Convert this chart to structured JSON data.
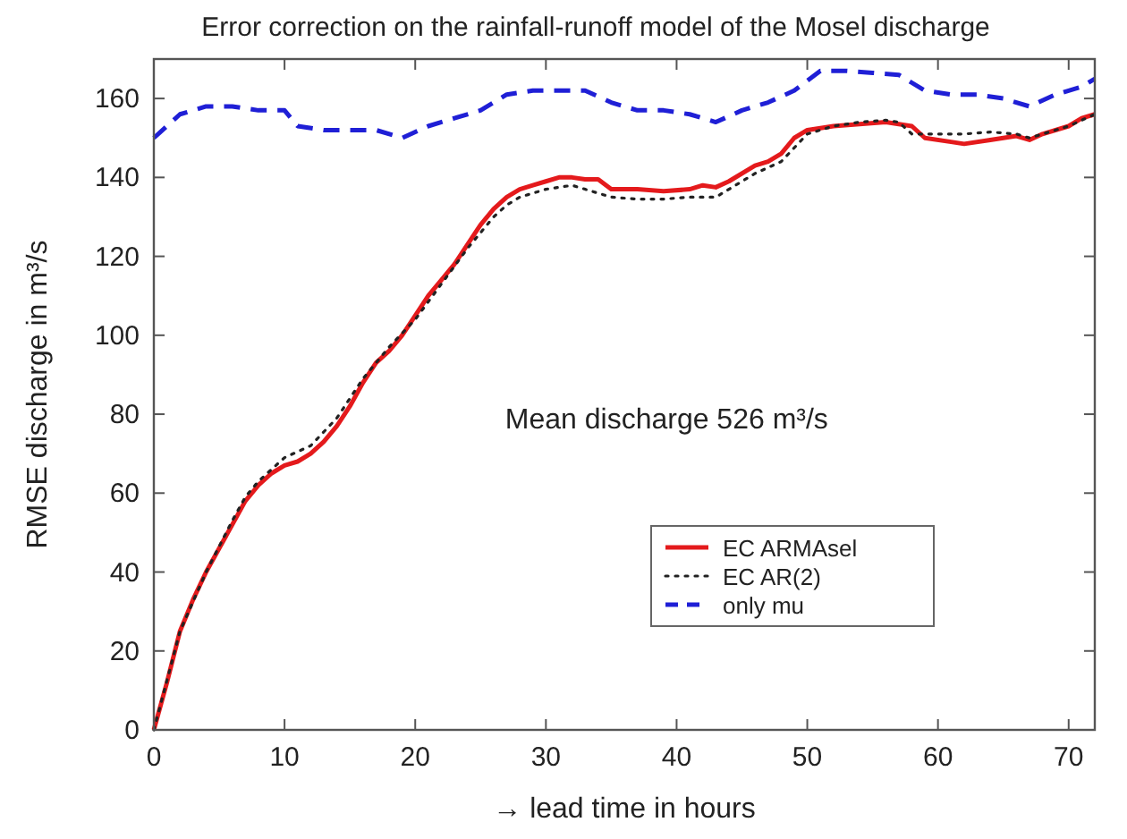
{
  "chart_data": {
    "type": "line",
    "title": "Error correction on the rainfall-runoff model of the Mosel discharge",
    "xlabel": "→ lead time in hours",
    "ylabel": "RMSE discharge in m³/s",
    "annotations": [
      "Mean discharge 526 m³/s"
    ],
    "xlim": [
      0,
      72
    ],
    "ylim": [
      0,
      170
    ],
    "xticks": [
      0,
      10,
      20,
      30,
      40,
      50,
      60,
      70
    ],
    "yticks": [
      0,
      20,
      40,
      60,
      80,
      100,
      120,
      140,
      160
    ],
    "grid": false,
    "legend": "bottom right",
    "marker": "none",
    "series": [
      {
        "name": "EC ARMAsel",
        "color": "#e41a1c",
        "line_style": "solid",
        "x": [
          0,
          1,
          2,
          3,
          4,
          5,
          6,
          7,
          8,
          9,
          10,
          11,
          12,
          13,
          14,
          15,
          16,
          17,
          18,
          19,
          20,
          21,
          22,
          23,
          24,
          25,
          26,
          27,
          28,
          29,
          30,
          31,
          32,
          33,
          34,
          35,
          37,
          39,
          41,
          42,
          43,
          44,
          46,
          47,
          48,
          49,
          50,
          52,
          54,
          56,
          57,
          58,
          59,
          61,
          62,
          64,
          66,
          67,
          68,
          70,
          71,
          72
        ],
        "values": [
          0,
          12,
          25,
          33,
          40,
          46,
          52,
          58,
          62,
          65,
          67,
          68,
          70,
          73,
          77,
          82,
          88,
          93,
          96,
          100,
          105,
          110,
          114,
          118,
          123,
          128,
          132,
          135,
          137,
          138,
          139,
          140,
          140,
          139.5,
          139.5,
          137,
          137,
          136.5,
          137,
          138,
          137.5,
          139,
          143,
          144,
          146,
          150,
          152,
          153,
          153.5,
          154,
          153.5,
          153,
          150,
          149,
          148.5,
          149.5,
          150.5,
          149.5,
          151,
          153,
          155,
          156
        ]
      },
      {
        "name": "EC AR(2)",
        "color": "#222222",
        "line_style": "dotted",
        "x": [
          0,
          2,
          4,
          6,
          7,
          8,
          10,
          12,
          14,
          15,
          16,
          18,
          20,
          22,
          24,
          26,
          27,
          28,
          30,
          32,
          33,
          35,
          37,
          39,
          41,
          43,
          44,
          46,
          48,
          50,
          52,
          54,
          56,
          57,
          58,
          60,
          62,
          64,
          66,
          67,
          68,
          70,
          72
        ],
        "values": [
          0,
          25,
          40,
          53,
          59,
          63,
          69,
          72,
          79,
          84,
          89,
          97,
          104,
          113,
          122,
          130,
          133,
          135,
          137,
          138,
          137,
          135,
          134.5,
          134.5,
          135,
          135,
          137,
          141,
          144,
          151,
          153,
          154,
          154.5,
          154,
          151,
          151,
          151,
          151.5,
          151,
          150,
          151,
          153,
          156
        ]
      },
      {
        "name": "only mu",
        "color": "#1f1fd6",
        "line_style": "dashed",
        "x": [
          0,
          2,
          4,
          6,
          8,
          10,
          11,
          13,
          15,
          17,
          19,
          21,
          23,
          25,
          27,
          29,
          31,
          33,
          35,
          37,
          39,
          41,
          43,
          45,
          47,
          49,
          51,
          53,
          55,
          57,
          59,
          61,
          63,
          65,
          67,
          69,
          71,
          72
        ],
        "values": [
          150,
          156,
          158,
          158,
          157,
          157,
          153,
          152,
          152,
          152,
          150,
          153,
          155,
          157,
          161,
          162,
          162,
          162,
          159,
          157,
          157,
          156,
          154,
          157,
          159,
          162,
          167,
          167,
          166.5,
          166,
          162,
          161,
          161,
          160,
          158,
          161,
          163,
          165
        ]
      }
    ]
  }
}
